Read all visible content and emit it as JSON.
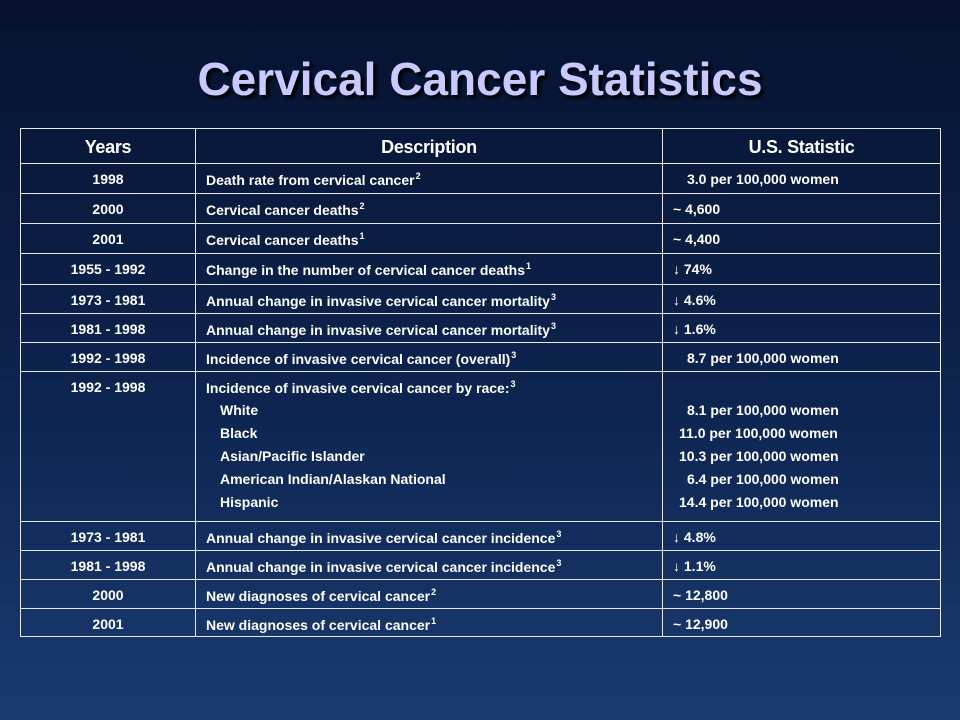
{
  "title": "Cervical Cancer Statistics",
  "table": {
    "header": [
      "Years",
      "Description",
      "U.S. Statistic"
    ],
    "rows": [
      {
        "years": "1998",
        "description": "Death rate from cervical cancer",
        "ref": "2",
        "statistic": "3.0 per 100,000 women"
      },
      {
        "years": "2000",
        "description": "Cervical cancer deaths",
        "ref": "2",
        "statistic": "~ 4,600"
      },
      {
        "years": "2001",
        "description": "Cervical cancer deaths",
        "ref": "1",
        "statistic": "~ 4,400"
      },
      {
        "years": "1955 - 1992",
        "description": "Change in the number of cervical cancer deaths",
        "ref": "1",
        "statistic": "↓ 74%"
      },
      {
        "years": "1973 - 1981",
        "description": "Annual change in invasive cervical cancer mortality",
        "ref": "3",
        "statistic": "↓ 4.6%"
      },
      {
        "years": "1981 - 1998",
        "description": "Annual change in invasive cervical cancer mortality",
        "ref": "3",
        "statistic": "↓ 1.6%"
      },
      {
        "years": "1992 - 1998",
        "description": "Incidence of invasive cervical cancer (overall)",
        "ref": "3",
        "statistic": "8.7 per 100,000 women"
      },
      {
        "years": "1992 - 1998",
        "description": "Incidence of invasive cervical cancer by race:",
        "ref": "3",
        "items": [
          "White",
          "Black",
          "Asian/Pacific Islander",
          "American Indian/Alaskan National",
          "Hispanic"
        ],
        "statistics": [
          "8.1 per 100,000 women",
          "11.0 per 100,000 women",
          "10.3 per 100,000 women",
          "6.4 per 100,000 women",
          "14.4 per 100,000 women"
        ]
      },
      {
        "years": "1973 - 1981",
        "description": "Annual change in invasive cervical cancer incidence",
        "ref": "3",
        "statistic": "↓ 4.8%"
      },
      {
        "years": "1981 - 1998",
        "description": "Annual change in invasive cervical cancer incidence",
        "ref": "3",
        "statistic": "↓ 1.1%"
      },
      {
        "years": "2000",
        "description": "New diagnoses of cervical cancer",
        "ref": "2",
        "statistic": "~ 12,800"
      },
      {
        "years": "2001",
        "description": "New diagnoses of cervical cancer",
        "ref": "1",
        "statistic": "~ 12,900"
      }
    ]
  }
}
